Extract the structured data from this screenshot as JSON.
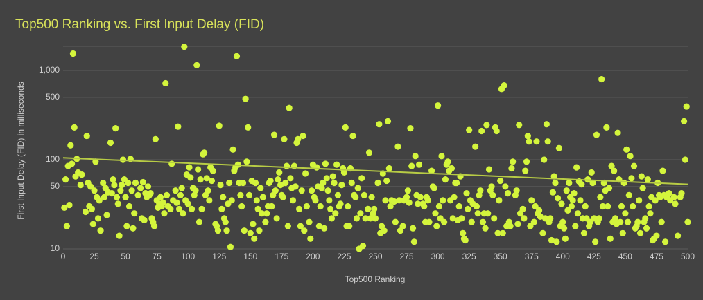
{
  "chart_data": {
    "type": "scatter",
    "title": "Top500 Ranking vs. First Input Delay (FID)",
    "x_label": "Top500 Ranking",
    "y_label": "First Input Delay (FID) in milliseconds",
    "xlim": [
      0,
      500
    ],
    "xticks": [
      0,
      25,
      50,
      75,
      100,
      125,
      150,
      175,
      200,
      225,
      250,
      275,
      300,
      325,
      350,
      375,
      400,
      425,
      450,
      475,
      500
    ],
    "ylim": [
      10,
      1870
    ],
    "yticks": [
      10,
      50,
      100,
      500,
      {
        "value": 1000,
        "label": "1,000"
      }
    ],
    "log_y": true,
    "grid": true,
    "series": [
      {
        "color": "#d4f53c",
        "x": [
          1,
          2,
          3,
          4,
          5,
          6,
          7,
          8,
          9,
          10,
          11,
          12,
          14,
          15,
          18,
          19,
          20,
          21,
          22,
          23,
          24,
          25,
          26,
          27,
          28,
          29,
          30,
          32,
          33,
          34,
          35,
          36,
          38,
          39,
          40,
          41,
          42,
          43,
          44,
          45,
          46,
          47,
          48,
          49,
          50,
          51,
          52,
          53,
          54,
          55,
          56,
          57,
          58,
          60,
          62,
          63,
          64,
          65,
          66,
          67,
          68,
          69,
          70,
          71,
          72,
          73,
          74,
          75,
          76,
          77,
          78,
          79,
          80,
          81,
          82,
          83,
          84,
          86,
          87,
          88,
          90,
          91,
          92,
          93,
          94,
          95,
          96,
          97,
          98,
          99,
          100,
          101,
          102,
          103,
          104,
          105,
          106,
          107,
          108,
          109,
          110,
          111,
          112,
          113,
          114,
          115,
          116,
          117,
          118,
          119,
          120,
          122,
          123,
          124,
          125,
          126,
          127,
          128,
          129,
          130,
          131,
          132,
          133,
          134,
          135,
          136,
          137,
          138,
          139,
          140,
          141,
          142,
          143,
          144,
          145,
          146,
          147,
          148,
          149,
          150,
          151,
          152,
          153,
          154,
          155,
          156,
          157,
          158,
          159,
          160,
          162,
          163,
          164,
          165,
          166,
          167,
          168,
          169,
          170,
          171,
          172,
          173,
          174,
          175,
          176,
          177,
          178,
          179,
          180,
          181,
          182,
          183,
          184,
          185,
          186,
          187,
          188,
          189,
          190,
          191,
          192,
          193,
          194,
          195,
          197,
          198,
          199,
          200,
          201,
          202,
          203,
          204,
          205,
          206,
          207,
          208,
          209,
          210,
          211,
          212,
          213,
          214,
          215,
          216,
          217,
          218,
          219,
          220,
          221,
          222,
          223,
          224,
          225,
          226,
          227,
          228,
          229,
          230,
          231,
          232,
          233,
          234,
          235,
          236,
          237,
          238,
          239,
          240,
          241,
          242,
          244,
          245,
          246,
          247,
          248,
          249,
          250,
          252,
          253,
          254,
          255,
          256,
          257,
          258,
          259,
          260,
          261,
          262,
          263,
          265,
          266,
          268,
          269,
          270,
          272,
          273,
          275,
          276,
          277,
          278,
          279,
          280,
          281,
          282,
          283,
          284,
          285,
          286,
          288,
          289,
          290,
          291,
          292,
          293,
          295,
          296,
          297,
          298,
          299,
          300,
          301,
          302,
          303,
          304,
          305,
          306,
          307,
          308,
          309,
          310,
          311,
          312,
          313,
          314,
          315,
          316,
          317,
          318,
          319,
          320,
          321,
          322,
          323,
          324,
          325,
          326,
          327,
          328,
          330,
          331,
          332,
          333,
          334,
          335,
          336,
          337,
          338,
          339,
          340,
          341,
          342,
          343,
          344,
          345,
          346,
          347,
          348,
          349,
          350,
          351,
          352,
          353,
          354,
          355,
          356,
          357,
          358,
          359,
          360,
          362,
          363,
          364,
          365,
          366,
          368,
          369,
          370,
          371,
          372,
          373,
          374,
          375,
          377,
          378,
          379,
          380,
          381,
          382,
          384,
          385,
          386,
          387,
          388,
          389,
          390,
          391,
          392,
          393,
          394,
          395,
          396,
          397,
          398,
          399,
          400,
          401,
          402,
          403,
          404,
          405,
          406,
          407,
          408,
          409,
          410,
          411,
          412,
          413,
          414,
          415,
          416,
          417,
          418,
          419,
          420,
          421,
          422,
          423,
          424,
          425,
          426,
          427,
          428,
          429,
          430,
          431,
          432,
          433,
          434,
          435,
          436,
          437,
          438,
          439,
          440,
          441,
          442,
          443,
          444,
          445,
          446,
          447,
          448,
          449,
          450,
          451,
          452,
          453,
          454,
          455,
          456,
          457,
          458,
          459,
          460,
          461,
          462,
          463,
          464,
          465,
          466,
          467,
          468,
          469,
          470,
          471,
          472,
          473,
          474,
          475,
          476,
          477,
          478,
          479,
          480,
          481,
          482,
          483,
          484,
          485,
          486,
          489,
          490,
          492,
          494,
          495,
          497,
          498,
          499,
          500
        ],
        "values": [
          29,
          60,
          18,
          85,
          31,
          145,
          90,
          1550,
          230,
          65,
          102,
          72,
          52,
          68,
          26,
          185,
          55,
          30,
          50,
          28,
          19,
          45,
          95,
          38,
          22,
          35,
          16,
          55,
          38,
          48,
          24,
          43,
          155,
          42,
          60,
          52,
          225,
          38,
          32,
          14,
          45,
          52,
          100,
          60,
          38,
          18,
          55,
          30,
          102,
          45,
          17,
          25,
          55,
          40,
          48,
          22,
          56,
          21,
          42,
          38,
          50,
          40,
          42,
          22,
          20,
          18,
          170,
          35,
          29,
          32,
          38,
          30,
          33,
          25,
          720,
          40,
          30,
          28,
          90,
          35,
          45,
          33,
          235,
          28,
          40,
          48,
          25,
          1850,
          35,
          68,
          32,
          82,
          63,
          28,
          48,
          40,
          45,
          1150,
          78,
          20,
          60,
          28,
          115,
          120,
          40,
          62,
          45,
          35,
          82,
          58,
          75,
          19,
          18,
          16,
          240,
          52,
          28,
          38,
          22,
          20,
          16,
          32,
          55,
          10.5,
          35,
          130,
          75,
          82,
          1450,
          88,
          55,
          40,
          30,
          55,
          16,
          480,
          95,
          230,
          40,
          15,
          58,
          19,
          13,
          55,
          35,
          28,
          16,
          48,
          25,
          38,
          20,
          25,
          30,
          55,
          58,
          30,
          40,
          190,
          45,
          22,
          60,
          72,
          52,
          40,
          38,
          170,
          55,
          85,
          18,
          380,
          62,
          48,
          35,
          85,
          50,
          155,
          170,
          28,
          18,
          45,
          185,
          16,
          70,
          30,
          20,
          13,
          45,
          88,
          38,
          35,
          82,
          50,
          18,
          30,
          48,
          55,
          17,
          90,
          62,
          45,
          35,
          28,
          22,
          65,
          55,
          25,
          88,
          40,
          30,
          32,
          52,
          80,
          72,
          230,
          18,
          30,
          18,
          80,
          55,
          185,
          40,
          38,
          22,
          48,
          10,
          25,
          62,
          10.8,
          40,
          22,
          28,
          120,
          22,
          38,
          25,
          28,
          22,
          55,
          250,
          15,
          18,
          70,
          16,
          35,
          58,
          270,
          80,
          30,
          35,
          34,
          20,
          140,
          35,
          16,
          18,
          35,
          38,
          45,
          33,
          225,
          85,
          17,
          12,
          110,
          40,
          32,
          88,
          38,
          32,
          30,
          20,
          38,
          35,
          20,
          75,
          50,
          48,
          25,
          18,
          405,
          30,
          22,
          110,
          35,
          20,
          60,
          88,
          95,
          75,
          35,
          80,
          22,
          38,
          55,
          55,
          21,
          30,
          65,
          22,
          15,
          13,
          12.5,
          42,
          28,
          215,
          35,
          20,
          32,
          140,
          30,
          25,
          40,
          45,
          210,
          20,
          25,
          17,
          245,
          25,
          78,
          45,
          50,
          40,
          22,
          230,
          210,
          15,
          35,
          58,
          620,
          15,
          680,
          50,
          18,
          42,
          20,
          18,
          80,
          95,
          40,
          45,
          19,
          245,
          25,
          28,
          22,
          75,
          95,
          185,
          160,
          18,
          35,
          20,
          30,
          160,
          25,
          27,
          23,
          15,
          100,
          22,
          250,
          160,
          20,
          22,
          12.5,
          43,
          65,
          55,
          12,
          37,
          135,
          18,
          32,
          20,
          17,
          13,
          45,
          27,
          55,
          38,
          30,
          35,
          42,
          18,
          82,
          25,
          57,
          35,
          53,
          22,
          15,
          30,
          22,
          60,
          18,
          20,
          72,
          55,
          22,
          12,
          190,
          20,
          22,
          38,
          800,
          30,
          55,
          45,
          230,
          30,
          48,
          13,
          85,
          20,
          75,
          22,
          19,
          200,
          60,
          20,
          30,
          15,
          55,
          25,
          130,
          20,
          40,
          110,
          62,
          30,
          85,
          17,
          18,
          20,
          35,
          15,
          65,
          48,
          20,
          22,
          17,
          60,
          30,
          25,
          38,
          12.5,
          13,
          35,
          14,
          55,
          40,
          38,
          20,
          75,
          40,
          12,
          38,
          40,
          42,
          35,
          38,
          32,
          14,
          38,
          42,
          270,
          100,
          395,
          20
        ]
      }
    ],
    "trendline": {
      "color": "#b8cc45",
      "x": [
        0,
        500
      ],
      "values": [
        105,
        53
      ]
    }
  }
}
